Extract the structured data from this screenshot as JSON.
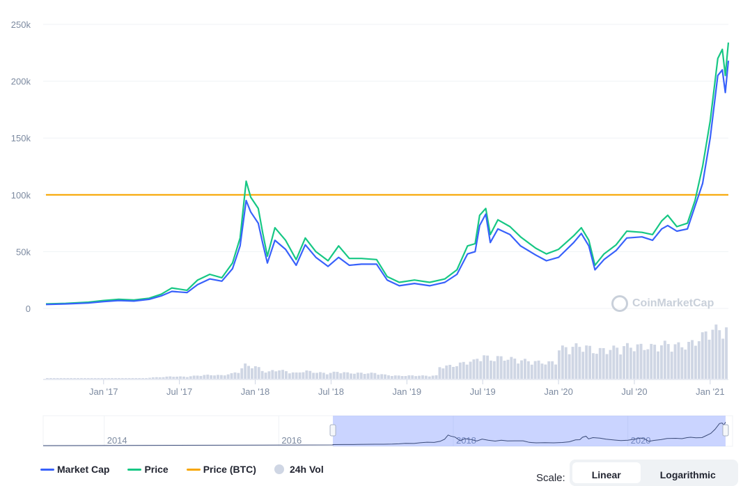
{
  "chart_data": {
    "type": "line",
    "ylim": [
      0,
      250000
    ],
    "y_ticks": [
      "250k",
      "200k",
      "150k",
      "100k",
      "50k",
      "0"
    ],
    "x_ticks": [
      "Jan '17",
      "Jul '17",
      "Jan '18",
      "Jul '18",
      "Jan '19",
      "Jul '19",
      "Jan '20",
      "Jul '20",
      "Jan '21"
    ],
    "x_tick_dates": [
      2017.0,
      2017.5,
      2018.0,
      2018.5,
      2019.0,
      2019.5,
      2020.0,
      2020.5,
      2021.0
    ],
    "xlim": [
      2016.62,
      2021.12
    ],
    "series": [
      {
        "name": "Market Cap",
        "color": "#3861fb",
        "points": [
          [
            2016.62,
            3500
          ],
          [
            2016.75,
            4000
          ],
          [
            2016.9,
            4800
          ],
          [
            2017.0,
            6000
          ],
          [
            2017.1,
            7000
          ],
          [
            2017.2,
            6500
          ],
          [
            2017.3,
            8000
          ],
          [
            2017.38,
            11000
          ],
          [
            2017.45,
            15000
          ],
          [
            2017.55,
            14000
          ],
          [
            2017.62,
            21000
          ],
          [
            2017.7,
            26000
          ],
          [
            2017.78,
            24000
          ],
          [
            2017.85,
            35000
          ],
          [
            2017.9,
            55000
          ],
          [
            2017.94,
            95000
          ],
          [
            2017.97,
            85000
          ],
          [
            2018.02,
            75000
          ],
          [
            2018.05,
            57000
          ],
          [
            2018.08,
            40000
          ],
          [
            2018.13,
            60000
          ],
          [
            2018.2,
            52000
          ],
          [
            2018.27,
            38000
          ],
          [
            2018.33,
            56000
          ],
          [
            2018.4,
            45000
          ],
          [
            2018.48,
            37000
          ],
          [
            2018.55,
            45000
          ],
          [
            2018.62,
            38000
          ],
          [
            2018.7,
            39000
          ],
          [
            2018.8,
            39000
          ],
          [
            2018.87,
            25000
          ],
          [
            2018.95,
            20000
          ],
          [
            2019.05,
            22000
          ],
          [
            2019.15,
            20000
          ],
          [
            2019.25,
            23000
          ],
          [
            2019.33,
            30000
          ],
          [
            2019.4,
            48000
          ],
          [
            2019.45,
            50000
          ],
          [
            2019.48,
            73000
          ],
          [
            2019.52,
            83000
          ],
          [
            2019.55,
            58000
          ],
          [
            2019.6,
            70000
          ],
          [
            2019.68,
            65000
          ],
          [
            2019.75,
            55000
          ],
          [
            2019.85,
            47000
          ],
          [
            2019.92,
            42000
          ],
          [
            2020.0,
            45000
          ],
          [
            2020.1,
            58000
          ],
          [
            2020.15,
            66000
          ],
          [
            2020.2,
            55000
          ],
          [
            2020.24,
            34000
          ],
          [
            2020.3,
            43000
          ],
          [
            2020.38,
            51000
          ],
          [
            2020.45,
            62000
          ],
          [
            2020.55,
            63000
          ],
          [
            2020.62,
            60000
          ],
          [
            2020.68,
            70000
          ],
          [
            2020.72,
            73000
          ],
          [
            2020.78,
            68000
          ],
          [
            2020.85,
            70000
          ],
          [
            2020.9,
            90000
          ],
          [
            2020.95,
            110000
          ],
          [
            2021.0,
            150000
          ],
          [
            2021.05,
            205000
          ],
          [
            2021.08,
            210000
          ],
          [
            2021.1,
            190000
          ],
          [
            2021.12,
            218000
          ]
        ]
      },
      {
        "name": "Price",
        "color": "#16c784",
        "points": [
          [
            2016.62,
            4000
          ],
          [
            2016.75,
            4500
          ],
          [
            2016.9,
            5500
          ],
          [
            2017.0,
            7000
          ],
          [
            2017.1,
            8000
          ],
          [
            2017.2,
            7500
          ],
          [
            2017.3,
            9000
          ],
          [
            2017.38,
            12500
          ],
          [
            2017.45,
            18000
          ],
          [
            2017.55,
            16000
          ],
          [
            2017.62,
            25000
          ],
          [
            2017.7,
            30000
          ],
          [
            2017.78,
            27000
          ],
          [
            2017.85,
            40000
          ],
          [
            2017.9,
            62000
          ],
          [
            2017.94,
            112000
          ],
          [
            2017.97,
            98000
          ],
          [
            2018.02,
            88000
          ],
          [
            2018.05,
            66000
          ],
          [
            2018.08,
            46000
          ],
          [
            2018.13,
            71000
          ],
          [
            2018.2,
            60000
          ],
          [
            2018.27,
            43000
          ],
          [
            2018.33,
            62000
          ],
          [
            2018.4,
            50000
          ],
          [
            2018.48,
            42000
          ],
          [
            2018.55,
            55000
          ],
          [
            2018.62,
            44000
          ],
          [
            2018.7,
            44000
          ],
          [
            2018.8,
            43000
          ],
          [
            2018.87,
            28000
          ],
          [
            2018.95,
            23000
          ],
          [
            2019.05,
            25000
          ],
          [
            2019.15,
            23000
          ],
          [
            2019.25,
            26000
          ],
          [
            2019.33,
            34000
          ],
          [
            2019.4,
            55000
          ],
          [
            2019.45,
            57000
          ],
          [
            2019.48,
            82000
          ],
          [
            2019.52,
            88000
          ],
          [
            2019.55,
            65000
          ],
          [
            2019.6,
            78000
          ],
          [
            2019.68,
            72000
          ],
          [
            2019.75,
            63000
          ],
          [
            2019.85,
            53000
          ],
          [
            2019.92,
            48000
          ],
          [
            2020.0,
            52000
          ],
          [
            2020.1,
            64000
          ],
          [
            2020.15,
            71000
          ],
          [
            2020.2,
            60000
          ],
          [
            2020.24,
            38000
          ],
          [
            2020.3,
            48000
          ],
          [
            2020.38,
            56000
          ],
          [
            2020.45,
            68000
          ],
          [
            2020.55,
            67000
          ],
          [
            2020.62,
            65000
          ],
          [
            2020.68,
            77000
          ],
          [
            2020.72,
            82000
          ],
          [
            2020.78,
            72000
          ],
          [
            2020.85,
            75000
          ],
          [
            2020.9,
            95000
          ],
          [
            2020.95,
            125000
          ],
          [
            2021.0,
            165000
          ],
          [
            2021.05,
            220000
          ],
          [
            2021.08,
            228000
          ],
          [
            2021.1,
            205000
          ],
          [
            2021.12,
            234000
          ]
        ]
      },
      {
        "name": "Price (BTC)",
        "color": "#f7a600",
        "points": [
          [
            2016.62,
            100000
          ],
          [
            2021.12,
            100000
          ]
        ]
      }
    ],
    "volume": {
      "name": "24h Vol",
      "color": "#cfd6e4"
    },
    "navigator": {
      "labels": [
        "2014",
        "2016",
        "2018",
        "2020"
      ],
      "label_dates": [
        2014.0,
        2016.0,
        2018.0,
        2020.0
      ],
      "range": [
        2013.3,
        2021.2
      ],
      "selection": [
        2016.62,
        2021.12
      ]
    },
    "legend": [
      "Market Cap",
      "Price",
      "Price (BTC)",
      "24h Vol"
    ],
    "grid": true
  },
  "watermark": "CoinMarketCap",
  "scale": {
    "label": "Scale:",
    "options": [
      "Linear",
      "Logarithmic"
    ],
    "active": "Linear"
  }
}
